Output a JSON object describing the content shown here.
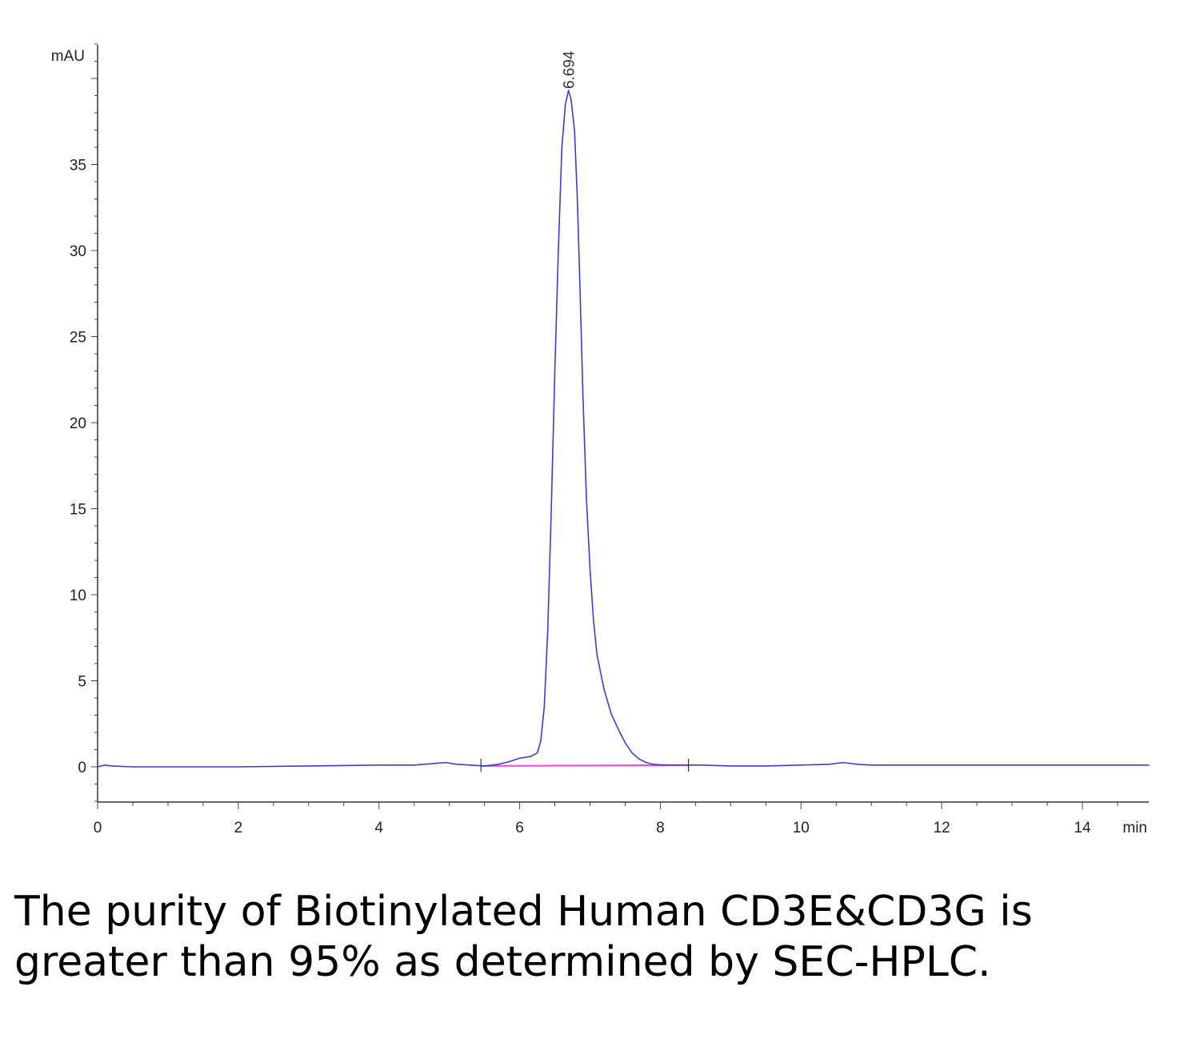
{
  "chart_data": {
    "type": "line",
    "title": "",
    "ylabel": "mAU",
    "xlabel": "min",
    "xlim": [
      0,
      14.95
    ],
    "ylim": [
      -2,
      42
    ],
    "x_ticks": [
      0,
      2,
      4,
      6,
      8,
      10,
      12,
      14
    ],
    "y_ticks": [
      0,
      5,
      10,
      15,
      20,
      25,
      30,
      35
    ],
    "grid": false,
    "series": [
      {
        "color": "#3b3bd6",
        "x": [
          0,
          0.1,
          0.2,
          0.5,
          1,
          2,
          3,
          4,
          4.5,
          4.8,
          4.95,
          5.1,
          5.3,
          5.5,
          5.7,
          5.85,
          6.0,
          6.15,
          6.25,
          6.3,
          6.35,
          6.4,
          6.45,
          6.5,
          6.55,
          6.6,
          6.65,
          6.694,
          6.73,
          6.78,
          6.82,
          6.86,
          6.9,
          6.95,
          7.0,
          7.05,
          7.1,
          7.2,
          7.3,
          7.4,
          7.5,
          7.6,
          7.7,
          7.8,
          7.9,
          8.0,
          8.2,
          8.4,
          8.6,
          9.0,
          9.5,
          10.0,
          10.4,
          10.6,
          10.8,
          11.0,
          12.0,
          13.0,
          14.0,
          14.95
        ],
        "y": [
          0.0,
          0.1,
          0.05,
          0.0,
          0.0,
          0.0,
          0.05,
          0.1,
          0.1,
          0.2,
          0.25,
          0.15,
          0.1,
          0.05,
          0.15,
          0.3,
          0.5,
          0.6,
          0.8,
          1.5,
          3.5,
          8,
          15,
          23,
          30,
          36,
          38.5,
          39.3,
          38.8,
          37.0,
          33.0,
          27.5,
          21.5,
          15.5,
          11.5,
          8.5,
          6.5,
          4.5,
          3.1,
          2.2,
          1.4,
          0.8,
          0.45,
          0.25,
          0.15,
          0.12,
          0.1,
          0.1,
          0.1,
          0.05,
          0.05,
          0.1,
          0.15,
          0.25,
          0.15,
          0.1,
          0.1,
          0.1,
          0.1,
          0.1
        ]
      },
      {
        "color": "#ee44dd",
        "x": [
          5.45,
          8.4
        ],
        "y": [
          0.05,
          0.1
        ]
      }
    ],
    "annotations": [
      {
        "text": "6.694",
        "x": 6.694,
        "y": 39.3
      }
    ],
    "integration_marks": [
      5.45,
      8.4
    ]
  },
  "caption": "The purity of Biotinylated Human CD3E&CD3G is greater than 95% as determined by SEC-HPLC."
}
